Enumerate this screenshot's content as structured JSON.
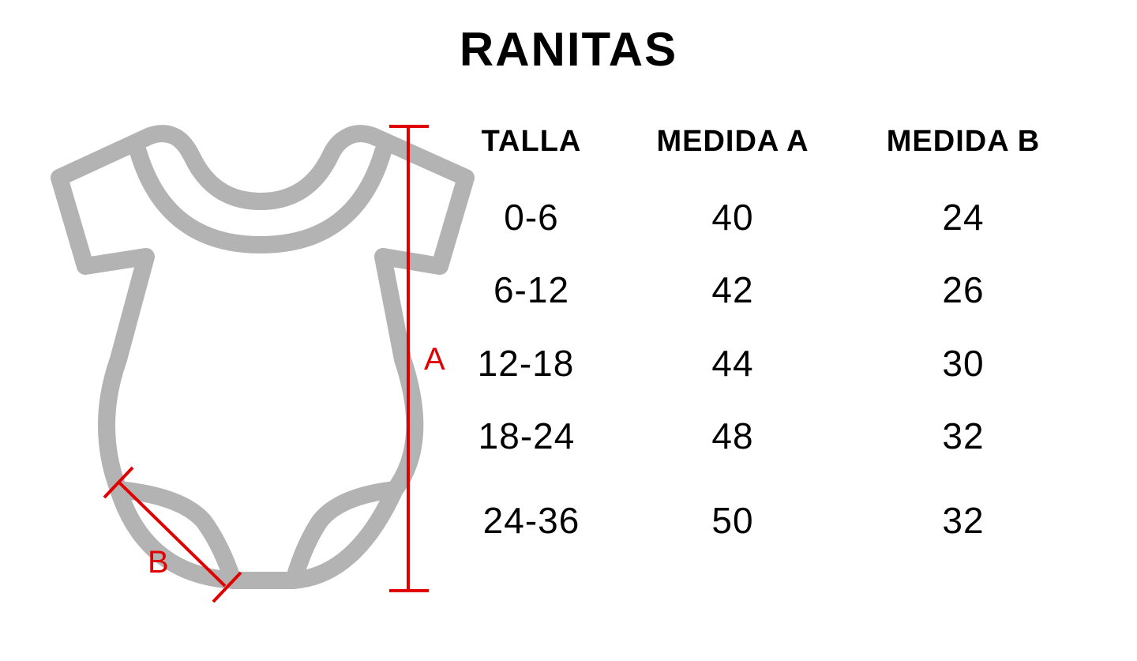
{
  "title": "RANITAS",
  "diagram": {
    "label_a": "A",
    "label_b": "B",
    "garment_color": "#b3b3b3",
    "measure_color": "#e00000"
  },
  "table": {
    "headers": [
      "TALLA",
      "MEDIDA A",
      "MEDIDA B"
    ],
    "rows": [
      [
        "0-6",
        "40",
        "24"
      ],
      [
        "6-12",
        "42",
        "26"
      ],
      [
        "12-18",
        "44",
        "30"
      ],
      [
        "18-24",
        "48",
        "32"
      ],
      [
        "24-36",
        "50",
        "32"
      ]
    ]
  }
}
